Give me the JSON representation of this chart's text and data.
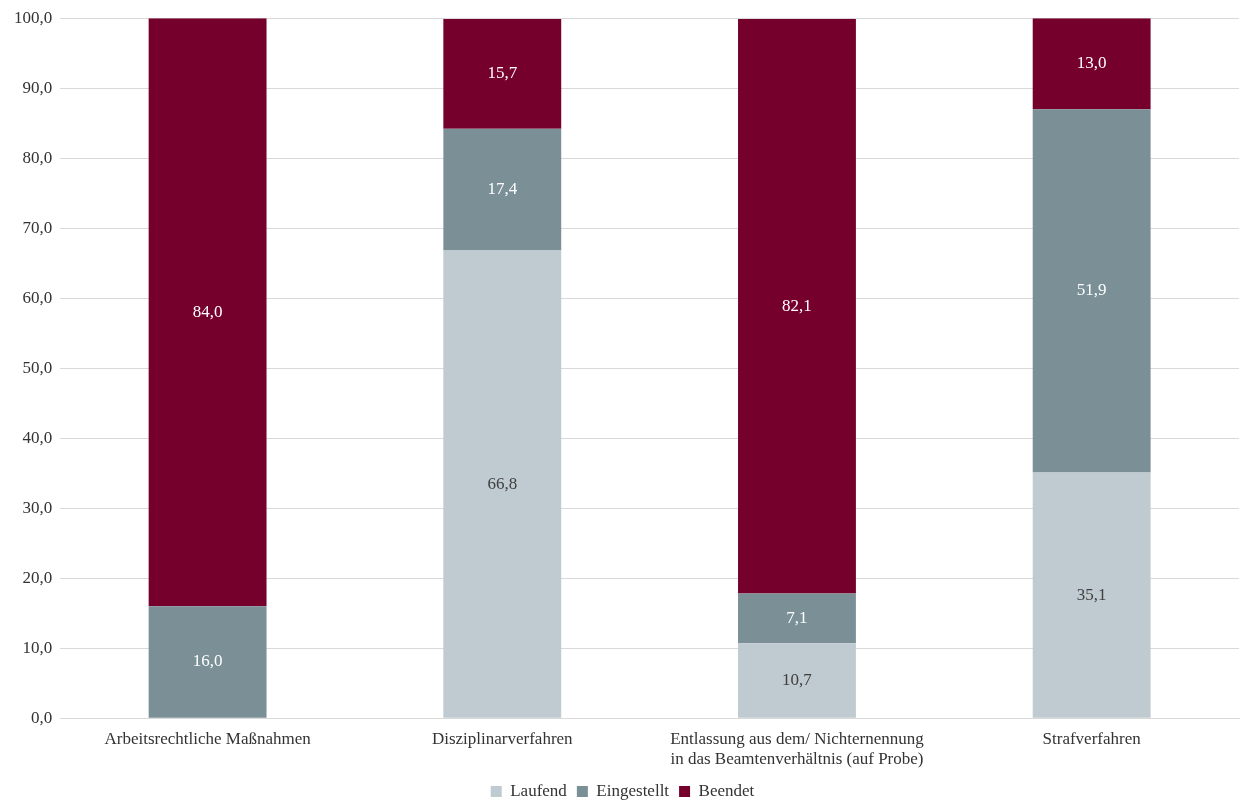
{
  "chart_data": {
    "type": "bar",
    "stacked": true,
    "categories": [
      "Arbeitsrechtliche Maßnahmen",
      "Disziplinarverfahren",
      "Entlassung aus dem/ Nichternennung in das Beamtenverhältnis (auf Probe)",
      "Strafverfahren"
    ],
    "series": [
      {
        "name": "Laufend",
        "color": "#bfcad1",
        "values": [
          null,
          66.8,
          10.7,
          35.1
        ],
        "value_labels": [
          null,
          "66,8",
          "10,7",
          "35,1"
        ]
      },
      {
        "name": "Eingestellt",
        "color": "#7b8f97",
        "values": [
          16.0,
          17.4,
          7.1,
          51.9
        ],
        "value_labels": [
          "16,0",
          "17,4",
          "7,1",
          "51,9"
        ]
      },
      {
        "name": "Beendet",
        "color": "#75002c",
        "values": [
          84.0,
          15.7,
          82.1,
          13.0
        ],
        "value_labels": [
          "84,0",
          "15,7",
          "82,1",
          "13,0"
        ]
      }
    ],
    "ylim": [
      0,
      100
    ],
    "yticks": [
      {
        "value": 0,
        "label": "0,0"
      },
      {
        "value": 10,
        "label": "10,0"
      },
      {
        "value": 20,
        "label": "20,0"
      },
      {
        "value": 30,
        "label": "30,0"
      },
      {
        "value": 40,
        "label": "40,0"
      },
      {
        "value": 50,
        "label": "50,0"
      },
      {
        "value": 60,
        "label": "60,0"
      },
      {
        "value": 70,
        "label": "70,0"
      },
      {
        "value": 80,
        "label": "80,0"
      },
      {
        "value": 90,
        "label": "90,0"
      },
      {
        "value": 100,
        "label": "100,0"
      }
    ],
    "grid": "y",
    "legend": "bottom"
  }
}
